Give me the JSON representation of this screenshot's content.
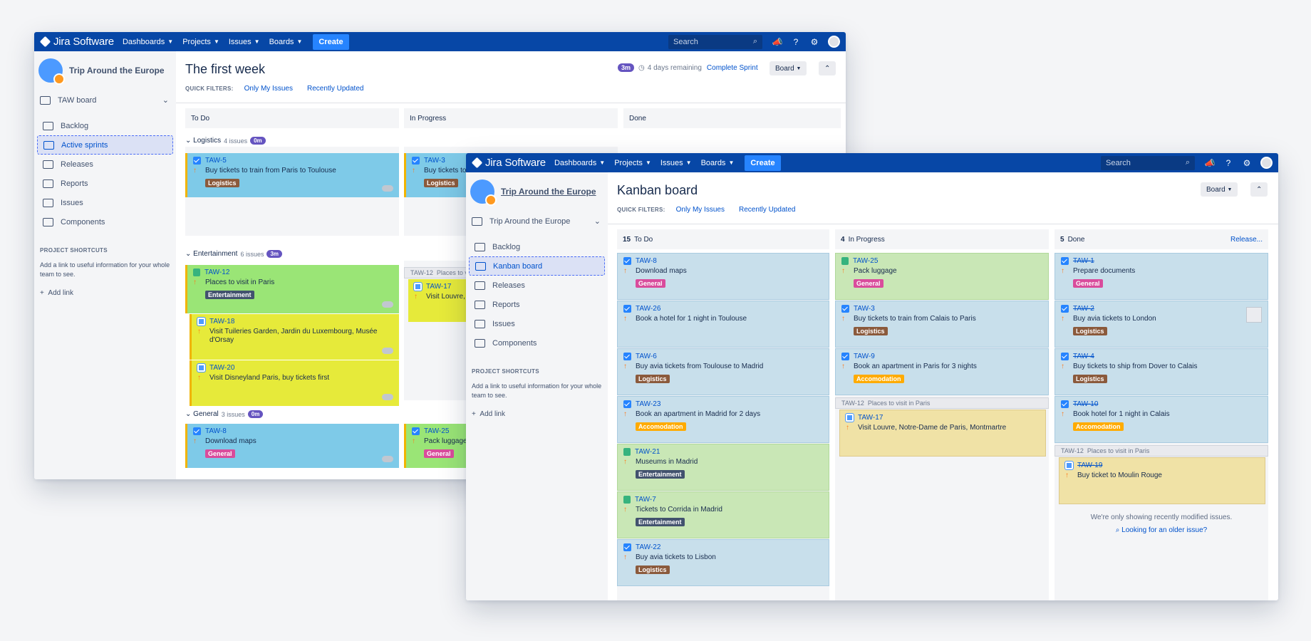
{
  "nav": {
    "logo": "Jira Software",
    "menus": [
      "Dashboards",
      "Projects",
      "Issues",
      "Boards"
    ],
    "create": "Create",
    "search_placeholder": "Search"
  },
  "colors": {
    "nav": "#0747a6",
    "logistics": "#8b5a3c",
    "entertainment": "#42526e",
    "general": "#d94c9c",
    "accomodation": "#ffab00"
  },
  "window1": {
    "project": "Trip Around the Europe",
    "board_selector": "TAW board",
    "sidebar": [
      "Backlog",
      "Active sprints",
      "Releases",
      "Reports",
      "Issues",
      "Components"
    ],
    "shortcuts_heading": "PROJECT SHORTCUTS",
    "shortcuts_desc": "Add a link to useful information for your whole team to see.",
    "add_link": "Add link",
    "title": "The first week",
    "quick_filters_label": "QUICK FILTERS:",
    "filters": [
      "Only My Issues",
      "Recently Updated"
    ],
    "sprint_badge": "3m",
    "remaining": "4 days remaining",
    "complete": "Complete Sprint",
    "board_btn": "Board",
    "columns": [
      "To Do",
      "In Progress",
      "Done"
    ],
    "swimlanes": [
      {
        "name": "Logistics",
        "count": "4 issues",
        "badge": "0m"
      },
      {
        "name": "Entertainment",
        "count": "6 issues",
        "badge": "3m"
      },
      {
        "name": "General",
        "count": "3 issues",
        "badge": "0m"
      }
    ],
    "cards": [
      {
        "key": "TAW-5",
        "summary": "Buy tickets to train from Paris to Toulouse",
        "label": "Logistics"
      },
      {
        "key": "TAW-3",
        "summary": "Buy tickets to train from Calais to Paris",
        "label": "Logistics"
      },
      {
        "key": "TAW-12",
        "summary": "Places to visit in Paris",
        "label": "Entertainment"
      },
      {
        "key": "TAW-18",
        "summary": "Visit Tuileries Garden, Jardin du Luxembourg, Musée d'Orsay"
      },
      {
        "key": "TAW-20",
        "summary": "Visit Disneyland Paris, buy tickets first"
      },
      {
        "key": "TAW-17",
        "summary": "Visit Louvre, Notre-Dame de Paris, Montmartre"
      },
      {
        "key": "TAW-8",
        "summary": "Download maps",
        "label": "General"
      },
      {
        "key": "TAW-25",
        "summary": "Pack luggage",
        "label": "General"
      }
    ],
    "parent_ref": "TAW-12",
    "parent_name": "Places to visit in Paris"
  },
  "window2": {
    "project": "Trip Around the Europe",
    "board_selector": "Trip Around the Europe",
    "sidebar": [
      "Backlog",
      "Kanban board",
      "Releases",
      "Reports",
      "Issues",
      "Components"
    ],
    "shortcuts_heading": "PROJECT SHORTCUTS",
    "shortcuts_desc": "Add a link to useful information for your whole team to see.",
    "add_link": "Add link",
    "title": "Kanban board",
    "quick_filters_label": "QUICK FILTERS:",
    "filters": [
      "Only My Issues",
      "Recently Updated"
    ],
    "board_btn": "Board",
    "columns": [
      {
        "count": "15",
        "name": "To Do"
      },
      {
        "count": "4",
        "name": "In Progress"
      },
      {
        "count": "5",
        "name": "Done"
      }
    ],
    "release": "Release...",
    "todo": [
      {
        "key": "TAW-8",
        "summary": "Download maps",
        "label": "General"
      },
      {
        "key": "TAW-26",
        "summary": "Book a hotel for 1 night in Toulouse"
      },
      {
        "key": "TAW-6",
        "summary": "Buy avia tickets from Toulouse to Madrid",
        "label": "Logistics"
      },
      {
        "key": "TAW-23",
        "summary": "Book an apartment in Madrid for 2 days",
        "label": "Accomodation"
      },
      {
        "key": "TAW-21",
        "summary": "Museums in Madrid",
        "label": "Entertainment"
      },
      {
        "key": "TAW-7",
        "summary": "Tickets to Corrida in Madrid",
        "label": "Entertainment"
      },
      {
        "key": "TAW-22",
        "summary": "Buy avia tickets to Lisbon",
        "label": "Logistics"
      }
    ],
    "progress": [
      {
        "key": "TAW-25",
        "summary": "Pack luggage",
        "label": "General"
      },
      {
        "key": "TAW-3",
        "summary": "Buy tickets to train from Calais to Paris",
        "label": "Logistics"
      },
      {
        "key": "TAW-9",
        "summary": "Book an apartment in Paris for 3 nights",
        "label": "Accomodation"
      },
      {
        "key": "TAW-17",
        "summary": "Visit Louvre, Notre-Dame de Paris, Montmartre"
      }
    ],
    "done": [
      {
        "key": "TAW-1",
        "summary": "Prepare documents",
        "label": "General"
      },
      {
        "key": "TAW-2",
        "summary": "Buy avia tickets to London",
        "label": "Logistics"
      },
      {
        "key": "TAW-4",
        "summary": "Buy tickets to ship from Dover to Calais",
        "label": "Logistics"
      },
      {
        "key": "TAW-10",
        "summary": "Book hotel for 1 night in Calais",
        "label": "Accomodation"
      },
      {
        "key": "TAW-19",
        "summary": "Buy ticket to Moulin Rouge"
      }
    ],
    "parent_ref": "TAW-12",
    "parent_name": "Places to visit in Paris",
    "note": "We're only showing recently modified issues.",
    "older": "Looking for an older issue?"
  }
}
